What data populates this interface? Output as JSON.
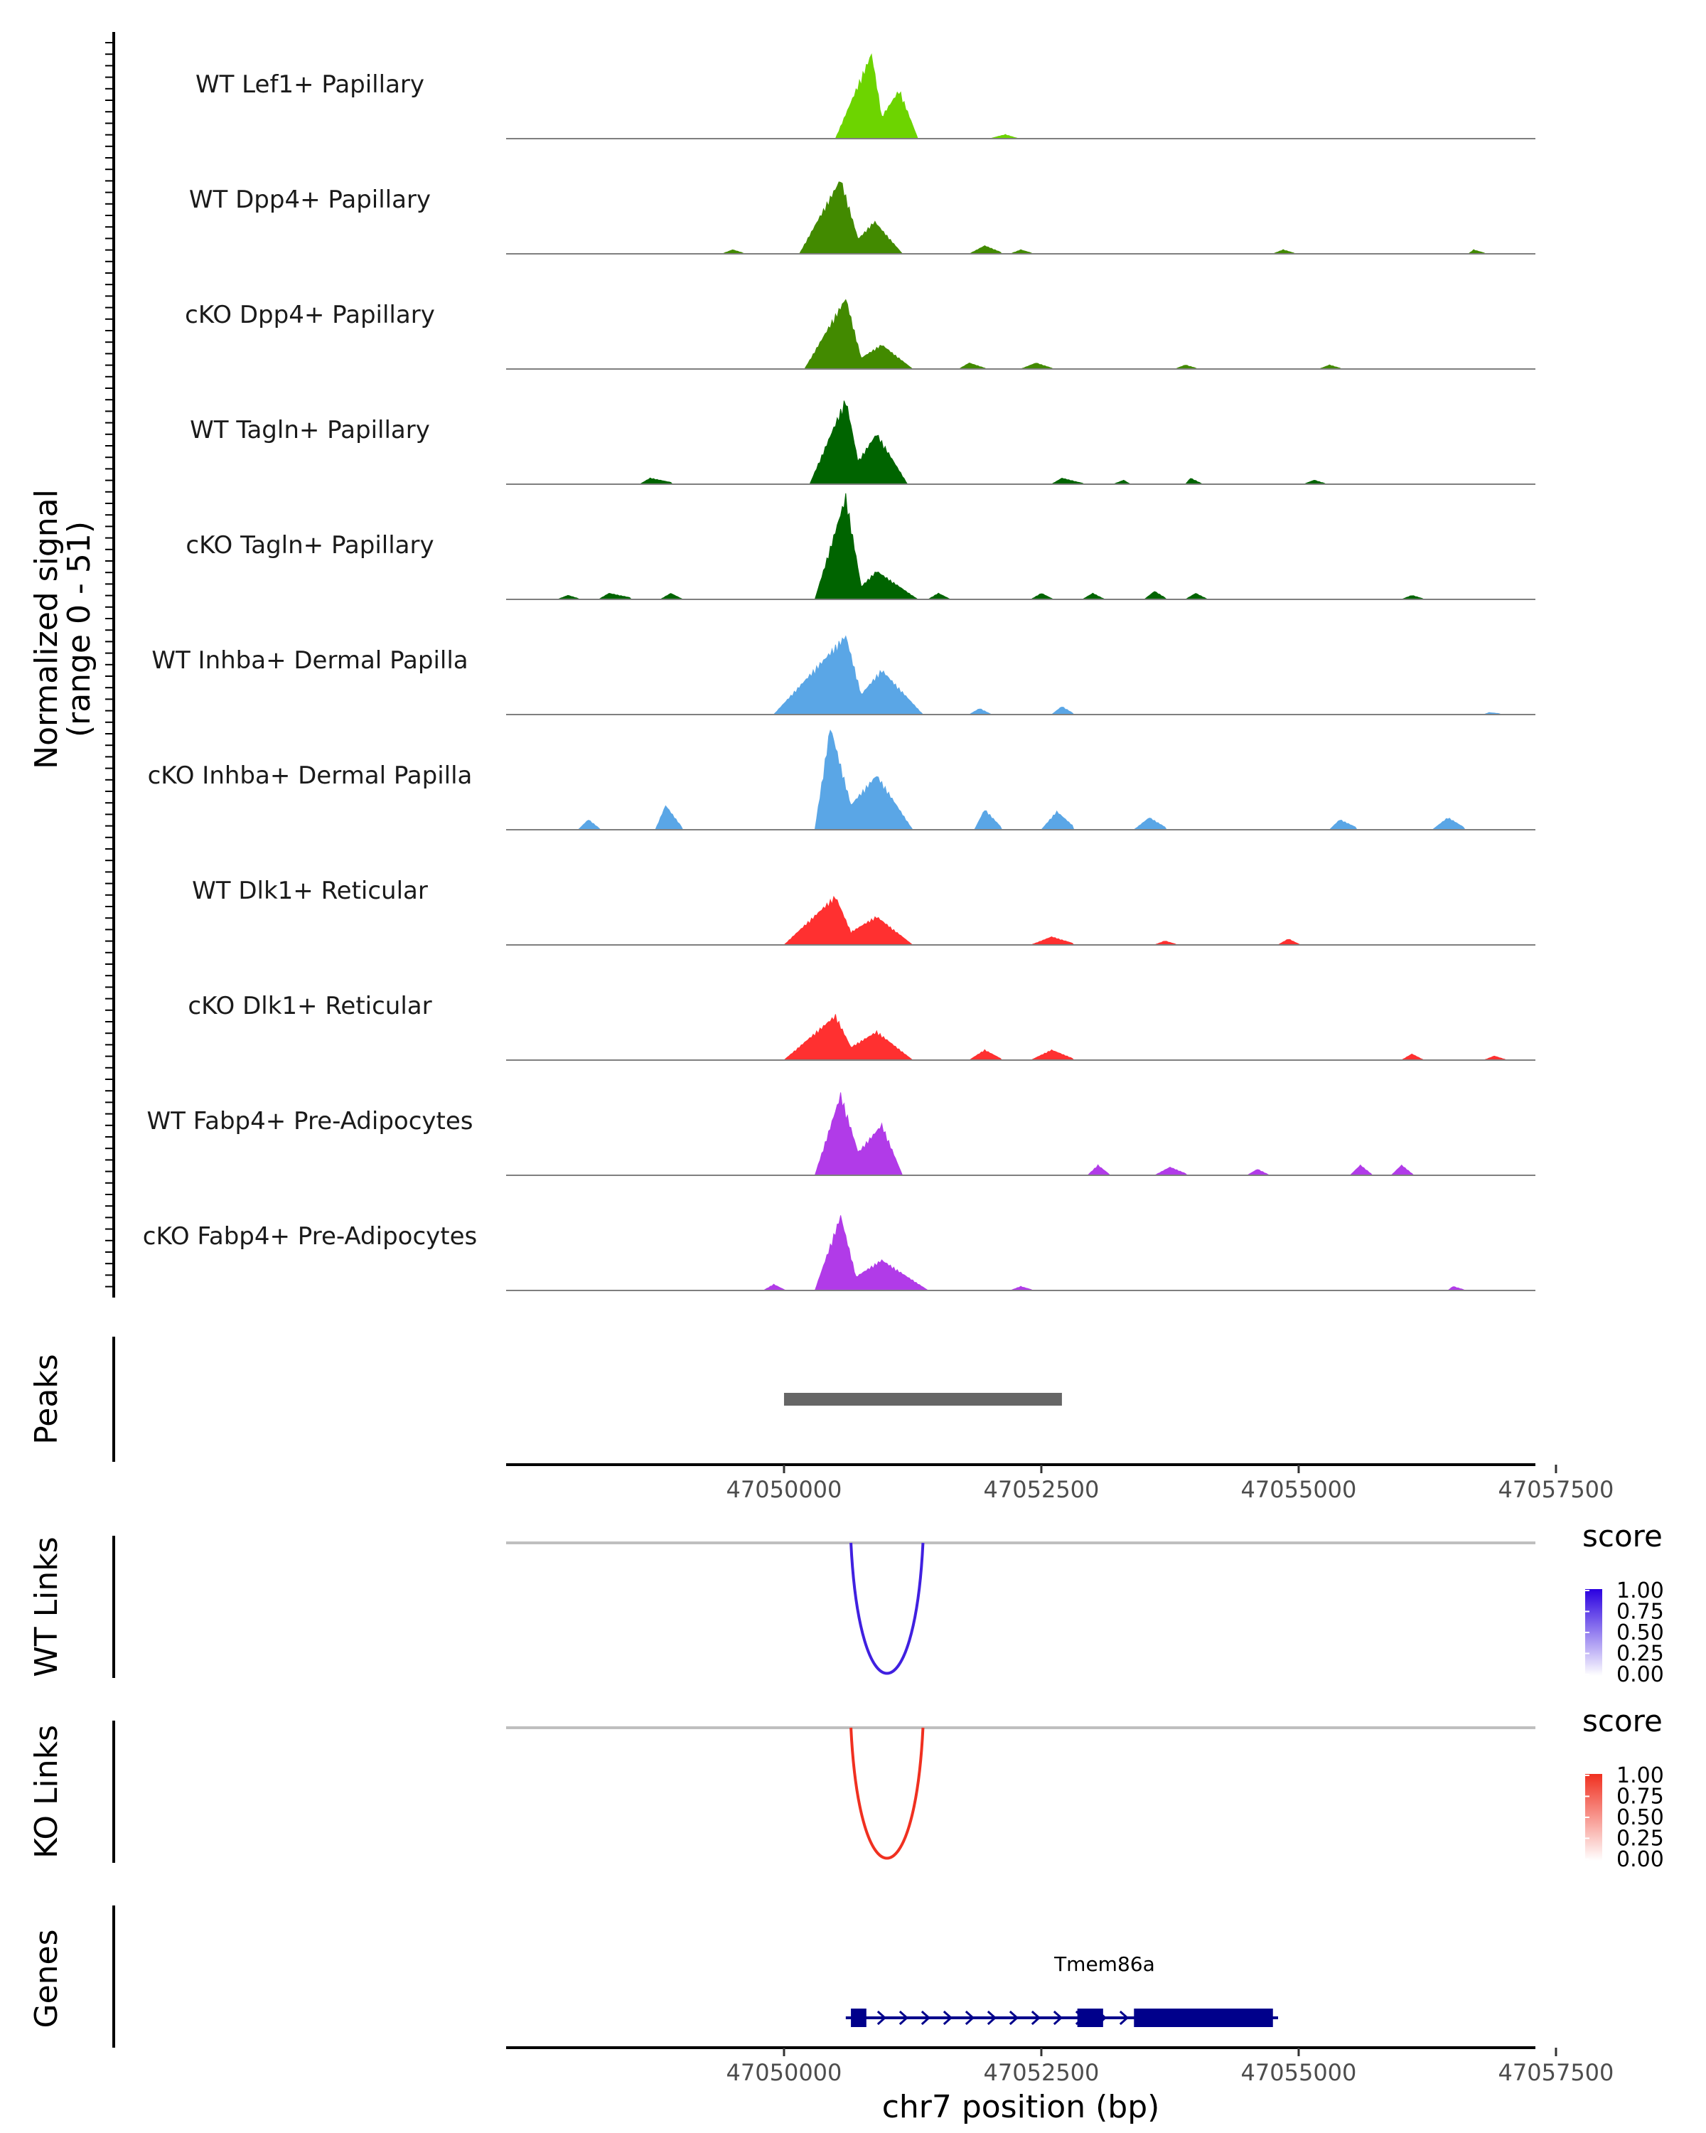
{
  "chart_data": {
    "type": "area",
    "title": "",
    "region": {
      "chrom": "chr7",
      "start": 47047300,
      "end": 47057300
    },
    "coverage": {
      "ylabel": "Normalized signal",
      "ylabel_range": "(range 0 - 51)",
      "ylim": [
        0,
        51
      ],
      "tracks": [
        {
          "name": "WT Lef1+ Papillary",
          "color": "#6dd400",
          "peaks": [
            [
              47050500,
              47050850,
              47050950,
              47051120,
              47051300,
              42,
              24
            ],
            [
              47052000,
              47052150,
              47052250,
              47052150,
              47052300,
              2,
              1
            ]
          ]
        },
        {
          "name": "WT Dpp4+ Papillary",
          "color": "#428a00",
          "peaks": [
            [
              47050150,
              47050550,
              47050720,
              47050880,
              47051150,
              37,
              16
            ],
            [
              47049400,
              47049500,
              47049600,
              47049500,
              47049600,
              2,
              1
            ],
            [
              47051800,
              47051950,
              47052100,
              47051950,
              47052100,
              4,
              2
            ],
            [
              47052200,
              47052300,
              47052400,
              47052300,
              47052400,
              2,
              1
            ],
            [
              47054750,
              47054850,
              47054950,
              47054850,
              47054950,
              2,
              1
            ],
            [
              47056650,
              47056700,
              47056800,
              47056700,
              47056800,
              2,
              1
            ]
          ]
        },
        {
          "name": "cKO Dpp4+ Papillary",
          "color": "#428a00",
          "peaks": [
            [
              47050200,
              47050600,
              47050750,
              47050950,
              47051250,
              35,
              12
            ],
            [
              47051700,
              47051800,
              47051950,
              47051800,
              47051950,
              3,
              1
            ],
            [
              47052300,
              47052450,
              47052600,
              47052450,
              47052600,
              3,
              1
            ],
            [
              47053800,
              47053900,
              47054000,
              47053900,
              47054000,
              2,
              1
            ],
            [
              47055200,
              47055300,
              47055400,
              47055300,
              47055400,
              2,
              1
            ]
          ]
        },
        {
          "name": "WT Tagln+ Papillary",
          "color": "#006400",
          "peaks": [
            [
              47050250,
              47050600,
              47050720,
              47050900,
              47051200,
              42,
              25
            ],
            [
              47048600,
              47048700,
              47048900,
              47048700,
              47048900,
              3,
              2
            ],
            [
              47052600,
              47052700,
              47052900,
              47052700,
              47052900,
              3,
              1
            ],
            [
              47053200,
              47053300,
              47053350,
              47053300,
              47053350,
              2,
              1
            ],
            [
              47053900,
              47053950,
              47054050,
              47053950,
              47054050,
              3,
              1
            ],
            [
              47055050,
              47055150,
              47055250,
              47055150,
              47055250,
              2,
              1
            ]
          ]
        },
        {
          "name": "cKO Tagln+ Papillary",
          "color": "#006400",
          "peaks": [
            [
              47050300,
              47050600,
              47050750,
              47050900,
              47051300,
              51,
              14
            ],
            [
              47047800,
              47047900,
              47048000,
              47047900,
              47048000,
              2,
              1
            ],
            [
              47048200,
              47048300,
              47048500,
              47048300,
              47048500,
              3,
              2
            ],
            [
              47048800,
              47048900,
              47049000,
              47048900,
              47049000,
              3,
              1
            ],
            [
              47051400,
              47051500,
              47051600,
              47051500,
              47051600,
              3,
              1
            ],
            [
              47052400,
              47052500,
              47052600,
              47052500,
              47052600,
              3,
              1
            ],
            [
              47052900,
              47053000,
              47053100,
              47053000,
              47053100,
              3,
              1
            ],
            [
              47053500,
              47053600,
              47053700,
              47053600,
              47053700,
              4,
              2
            ],
            [
              47053900,
              47054000,
              47054100,
              47054000,
              47054100,
              3,
              1
            ],
            [
              47056000,
              47056100,
              47056200,
              47056100,
              47056200,
              2,
              1
            ]
          ]
        },
        {
          "name": "WT Inhba+ Dermal Papilla",
          "color": "#5aa6e6",
          "peaks": [
            [
              47049900,
              47050600,
              47050750,
              47050950,
              47051350,
              39,
              22
            ],
            [
              47051800,
              47051900,
              47052000,
              47051900,
              47052000,
              3,
              1
            ],
            [
              47052600,
              47052700,
              47052800,
              47052700,
              47052800,
              4,
              2
            ],
            [
              47056800,
              47056850,
              47056950,
              47056850,
              47056950,
              1,
              1
            ]
          ]
        },
        {
          "name": "cKO Inhba+ Dermal Papilla",
          "color": "#5aa6e6",
          "peaks": [
            [
              47050300,
              47050450,
              47050650,
              47050900,
              47051250,
              51,
              27
            ],
            [
              47048000,
              47048100,
              47048200,
              47048100,
              47048200,
              5,
              2
            ],
            [
              47048750,
              47048850,
              47049000,
              47048850,
              47049000,
              12,
              4
            ],
            [
              47051850,
              47051950,
              47052100,
              47051950,
              47052100,
              10,
              4
            ],
            [
              47052500,
              47052650,
              47052800,
              47052650,
              47052800,
              9,
              5
            ],
            [
              47053400,
              47053550,
              47053700,
              47053550,
              47053700,
              6,
              3
            ],
            [
              47055300,
              47055400,
              47055550,
              47055400,
              47055550,
              5,
              3
            ],
            [
              47056300,
              47056450,
              47056600,
              47056450,
              47056600,
              6,
              3
            ]
          ]
        },
        {
          "name": "WT Dlk1+ Reticular",
          "color": "#ff3030",
          "peaks": [
            [
              47050000,
              47050500,
              47050650,
              47050900,
              47051250,
              24,
              14
            ],
            [
              47052400,
              47052600,
              47052800,
              47052600,
              47052800,
              4,
              2
            ],
            [
              47053600,
              47053700,
              47053800,
              47053700,
              47053800,
              2,
              1
            ],
            [
              47054800,
              47054900,
              47055000,
              47054900,
              47055000,
              3,
              1
            ]
          ]
        },
        {
          "name": "cKO Dlk1+ Reticular",
          "color": "#ff3030",
          "peaks": [
            [
              47050000,
              47050500,
              47050650,
              47050900,
              47051250,
              22,
              14
            ],
            [
              47051800,
              47051950,
              47052100,
              47051950,
              47052100,
              5,
              2
            ],
            [
              47052400,
              47052600,
              47052800,
              47052600,
              47052800,
              5,
              2
            ],
            [
              47056000,
              47056100,
              47056200,
              47056100,
              47056200,
              3,
              1
            ],
            [
              47056800,
              47056900,
              47057000,
              47056900,
              47057000,
              2,
              1
            ]
          ]
        },
        {
          "name": "WT Fabp4+ Pre-Adipocytes",
          "color": "#b13be8",
          "peaks": [
            [
              47050300,
              47050550,
              47050720,
              47050950,
              47051150,
              40,
              25
            ],
            [
              47052950,
              47053050,
              47053150,
              47053050,
              47053150,
              5,
              2
            ],
            [
              47053600,
              47053750,
              47053900,
              47053750,
              47053900,
              4,
              2
            ],
            [
              47054500,
              47054600,
              47054700,
              47054600,
              47054700,
              3,
              1
            ],
            [
              47055500,
              47055600,
              47055700,
              47055600,
              47055700,
              5,
              2
            ],
            [
              47055900,
              47056000,
              47056100,
              47056000,
              47056100,
              5,
              2
            ]
          ]
        },
        {
          "name": "cKO Fabp4+ Pre-Adipocytes",
          "color": "#b13be8",
          "peaks": [
            [
              47050300,
              47050550,
              47050700,
              47050950,
              47051400,
              37,
              15
            ],
            [
              47049800,
              47049900,
              47050000,
              47049900,
              47050000,
              3,
              1
            ],
            [
              47052200,
              47052300,
              47052400,
              47052300,
              47052400,
              2,
              1
            ],
            [
              47056450,
              47056500,
              47056600,
              47056500,
              47056600,
              2,
              1
            ]
          ]
        }
      ]
    },
    "peaks_track": {
      "label": "Peaks",
      "intervals": [
        {
          "start": 47050000,
          "end": 47052700
        }
      ]
    },
    "links_tracks": [
      {
        "label": "WT Links",
        "color": "#4020e0",
        "links": [
          {
            "start": 47050650,
            "end": 47051350,
            "score": 0.9
          }
        ],
        "legend": {
          "title": "score",
          "ticks": [
            "1.00",
            "0.75",
            "0.50",
            "0.25",
            "0.00"
          ],
          "low": "#ffffff",
          "high": "#2a00e0"
        }
      },
      {
        "label": "KO Links",
        "color": "#f03020",
        "links": [
          {
            "start": 47050650,
            "end": 47051350,
            "score": 0.9
          }
        ],
        "legend": {
          "title": "score",
          "ticks": [
            "1.00",
            "0.75",
            "0.50",
            "0.25",
            "0.00"
          ],
          "low": "#ffffff",
          "high": "#f03020"
        }
      }
    ],
    "genes_track": {
      "label": "Genes",
      "color": "#00008b",
      "genes": [
        {
          "name": "Tmem86a",
          "start": 47050600,
          "end": 47054800,
          "strand": "+",
          "exons": [
            [
              47050650,
              47050800
            ],
            [
              47052850,
              47053100
            ],
            [
              47053400,
              47054750
            ]
          ]
        }
      ]
    },
    "x_axis": {
      "label": "chr7 position (bp)",
      "ticks": [
        47050000,
        47052500,
        47055000,
        47057500
      ],
      "tick_labels": [
        "47050000",
        "47052500",
        "47055000",
        "47057500"
      ]
    }
  }
}
